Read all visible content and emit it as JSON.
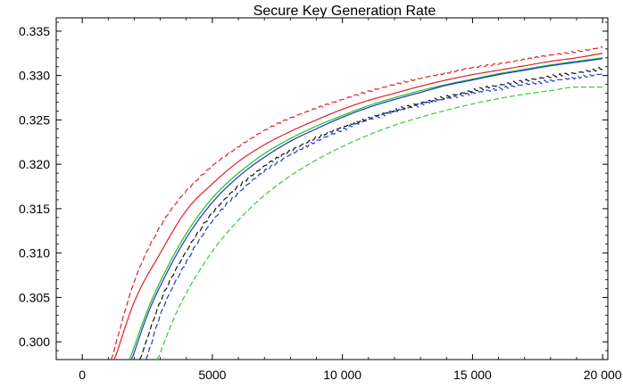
{
  "chart_data": {
    "type": "line",
    "title": "Secure Key Generation Rate",
    "xlabel": "",
    "ylabel": "",
    "xlim": [
      -1000,
      20200
    ],
    "ylim": [
      0.298,
      0.3365
    ],
    "x_ticks": [
      0,
      5000,
      10000,
      15000,
      20000
    ],
    "x_tick_labels": [
      "0",
      "5000",
      "10 000",
      "15 000",
      "20 000"
    ],
    "y_ticks": [
      0.3,
      0.305,
      0.31,
      0.315,
      0.32,
      0.325,
      0.33,
      0.335
    ],
    "y_tick_labels": [
      "0.300",
      "0.305",
      "0.310",
      "0.315",
      "0.320",
      "0.325",
      "0.330",
      "0.335"
    ],
    "grid": false,
    "frame": true,
    "series": [
      {
        "color": "#e0202a",
        "dash": "solid",
        "jitter": 0,
        "x": [
          1220,
          2000,
          3000,
          4000,
          5000,
          6000,
          7000,
          8000,
          9000,
          10000,
          11000,
          12000,
          13000,
          14000,
          15000,
          16000,
          17000,
          18000,
          19000,
          20000
        ],
        "y": [
          0.2978,
          0.3045,
          0.31,
          0.3148,
          0.3178,
          0.3203,
          0.3222,
          0.3237,
          0.325,
          0.3262,
          0.3272,
          0.328,
          0.3288,
          0.3295,
          0.3301,
          0.3306,
          0.3311,
          0.3316,
          0.332,
          0.3325
        ]
      },
      {
        "color": "#e0202a",
        "dash": "dashed",
        "jitter": 0.00012,
        "x": [
          1100,
          2000,
          3000,
          4000,
          5000,
          6000,
          7000,
          8000,
          9000,
          10000,
          11000,
          12000,
          13000,
          14000,
          15000,
          16000,
          17000,
          18000,
          19000,
          20000
        ],
        "y": [
          0.2978,
          0.3068,
          0.313,
          0.317,
          0.3198,
          0.322,
          0.3238,
          0.3252,
          0.3263,
          0.3273,
          0.3282,
          0.329,
          0.3297,
          0.3303,
          0.3309,
          0.3313,
          0.3318,
          0.3323,
          0.3327,
          0.3332
        ]
      },
      {
        "color": "#20c020",
        "dash": "solid",
        "jitter": 0,
        "x": [
          1800,
          2500,
          3000,
          4000,
          5000,
          6000,
          7000,
          8000,
          9000,
          10000,
          11000,
          12000,
          13000,
          14000,
          15000,
          16000,
          17000,
          18000,
          19000,
          20000
        ],
        "y": [
          0.2978,
          0.3035,
          0.3068,
          0.3122,
          0.3162,
          0.319,
          0.3212,
          0.3229,
          0.3243,
          0.3255,
          0.3266,
          0.3275,
          0.3283,
          0.329,
          0.3296,
          0.3302,
          0.3307,
          0.3312,
          0.3316,
          0.332
        ]
      },
      {
        "color": "#1c34d0",
        "dash": "solid",
        "jitter": 0,
        "x": [
          1880,
          2500,
          3000,
          4000,
          5000,
          6000,
          7000,
          8000,
          9000,
          10000,
          11000,
          12000,
          13000,
          14000,
          15000,
          16000,
          17000,
          18000,
          19000,
          20000
        ],
        "y": [
          0.2978,
          0.303,
          0.3063,
          0.3117,
          0.3157,
          0.3186,
          0.3208,
          0.3226,
          0.324,
          0.3253,
          0.3264,
          0.3273,
          0.3281,
          0.3289,
          0.3295,
          0.3301,
          0.3306,
          0.3311,
          0.3315,
          0.3319
        ]
      },
      {
        "color": "#111111",
        "dash": "dashed",
        "jitter": 0.00018,
        "x": [
          2200,
          3000,
          4000,
          5000,
          6000,
          7000,
          8000,
          9000,
          10000,
          11000,
          12000,
          13000,
          14000,
          15000,
          16000,
          17000,
          18000,
          19000,
          20000
        ],
        "y": [
          0.2978,
          0.3045,
          0.3102,
          0.3145,
          0.3175,
          0.3198,
          0.3215,
          0.323,
          0.3242,
          0.3252,
          0.3261,
          0.3269,
          0.3276,
          0.3283,
          0.3289,
          0.3294,
          0.3299,
          0.3303,
          0.3308
        ]
      },
      {
        "color": "#1c34d0",
        "dash": "dashed",
        "jitter": 0.00018,
        "x": [
          2450,
          3000,
          4000,
          5000,
          6000,
          7000,
          8000,
          9000,
          10000,
          11000,
          12000,
          13000,
          14000,
          15000,
          16000,
          17000,
          18000,
          19000,
          20000
        ],
        "y": [
          0.2978,
          0.303,
          0.309,
          0.3136,
          0.3168,
          0.3192,
          0.3211,
          0.3226,
          0.3239,
          0.325,
          0.3259,
          0.3267,
          0.3274,
          0.328,
          0.3285,
          0.329,
          0.3294,
          0.3298,
          0.3302
        ]
      },
      {
        "color": "#30d030",
        "dash": "dashed",
        "jitter": 0,
        "x": [
          2870,
          3500,
          4000,
          5000,
          6000,
          7000,
          8000,
          9000,
          10000,
          11000,
          12000,
          13000,
          14000,
          15000,
          16000,
          17000,
          18000,
          19000,
          20000
        ],
        "y": [
          0.2978,
          0.3025,
          0.3055,
          0.3102,
          0.3137,
          0.3165,
          0.3187,
          0.3205,
          0.322,
          0.3233,
          0.3244,
          0.3253,
          0.3261,
          0.3268,
          0.3274,
          0.3279,
          0.3283,
          0.3287,
          0.3287
        ]
      }
    ]
  }
}
